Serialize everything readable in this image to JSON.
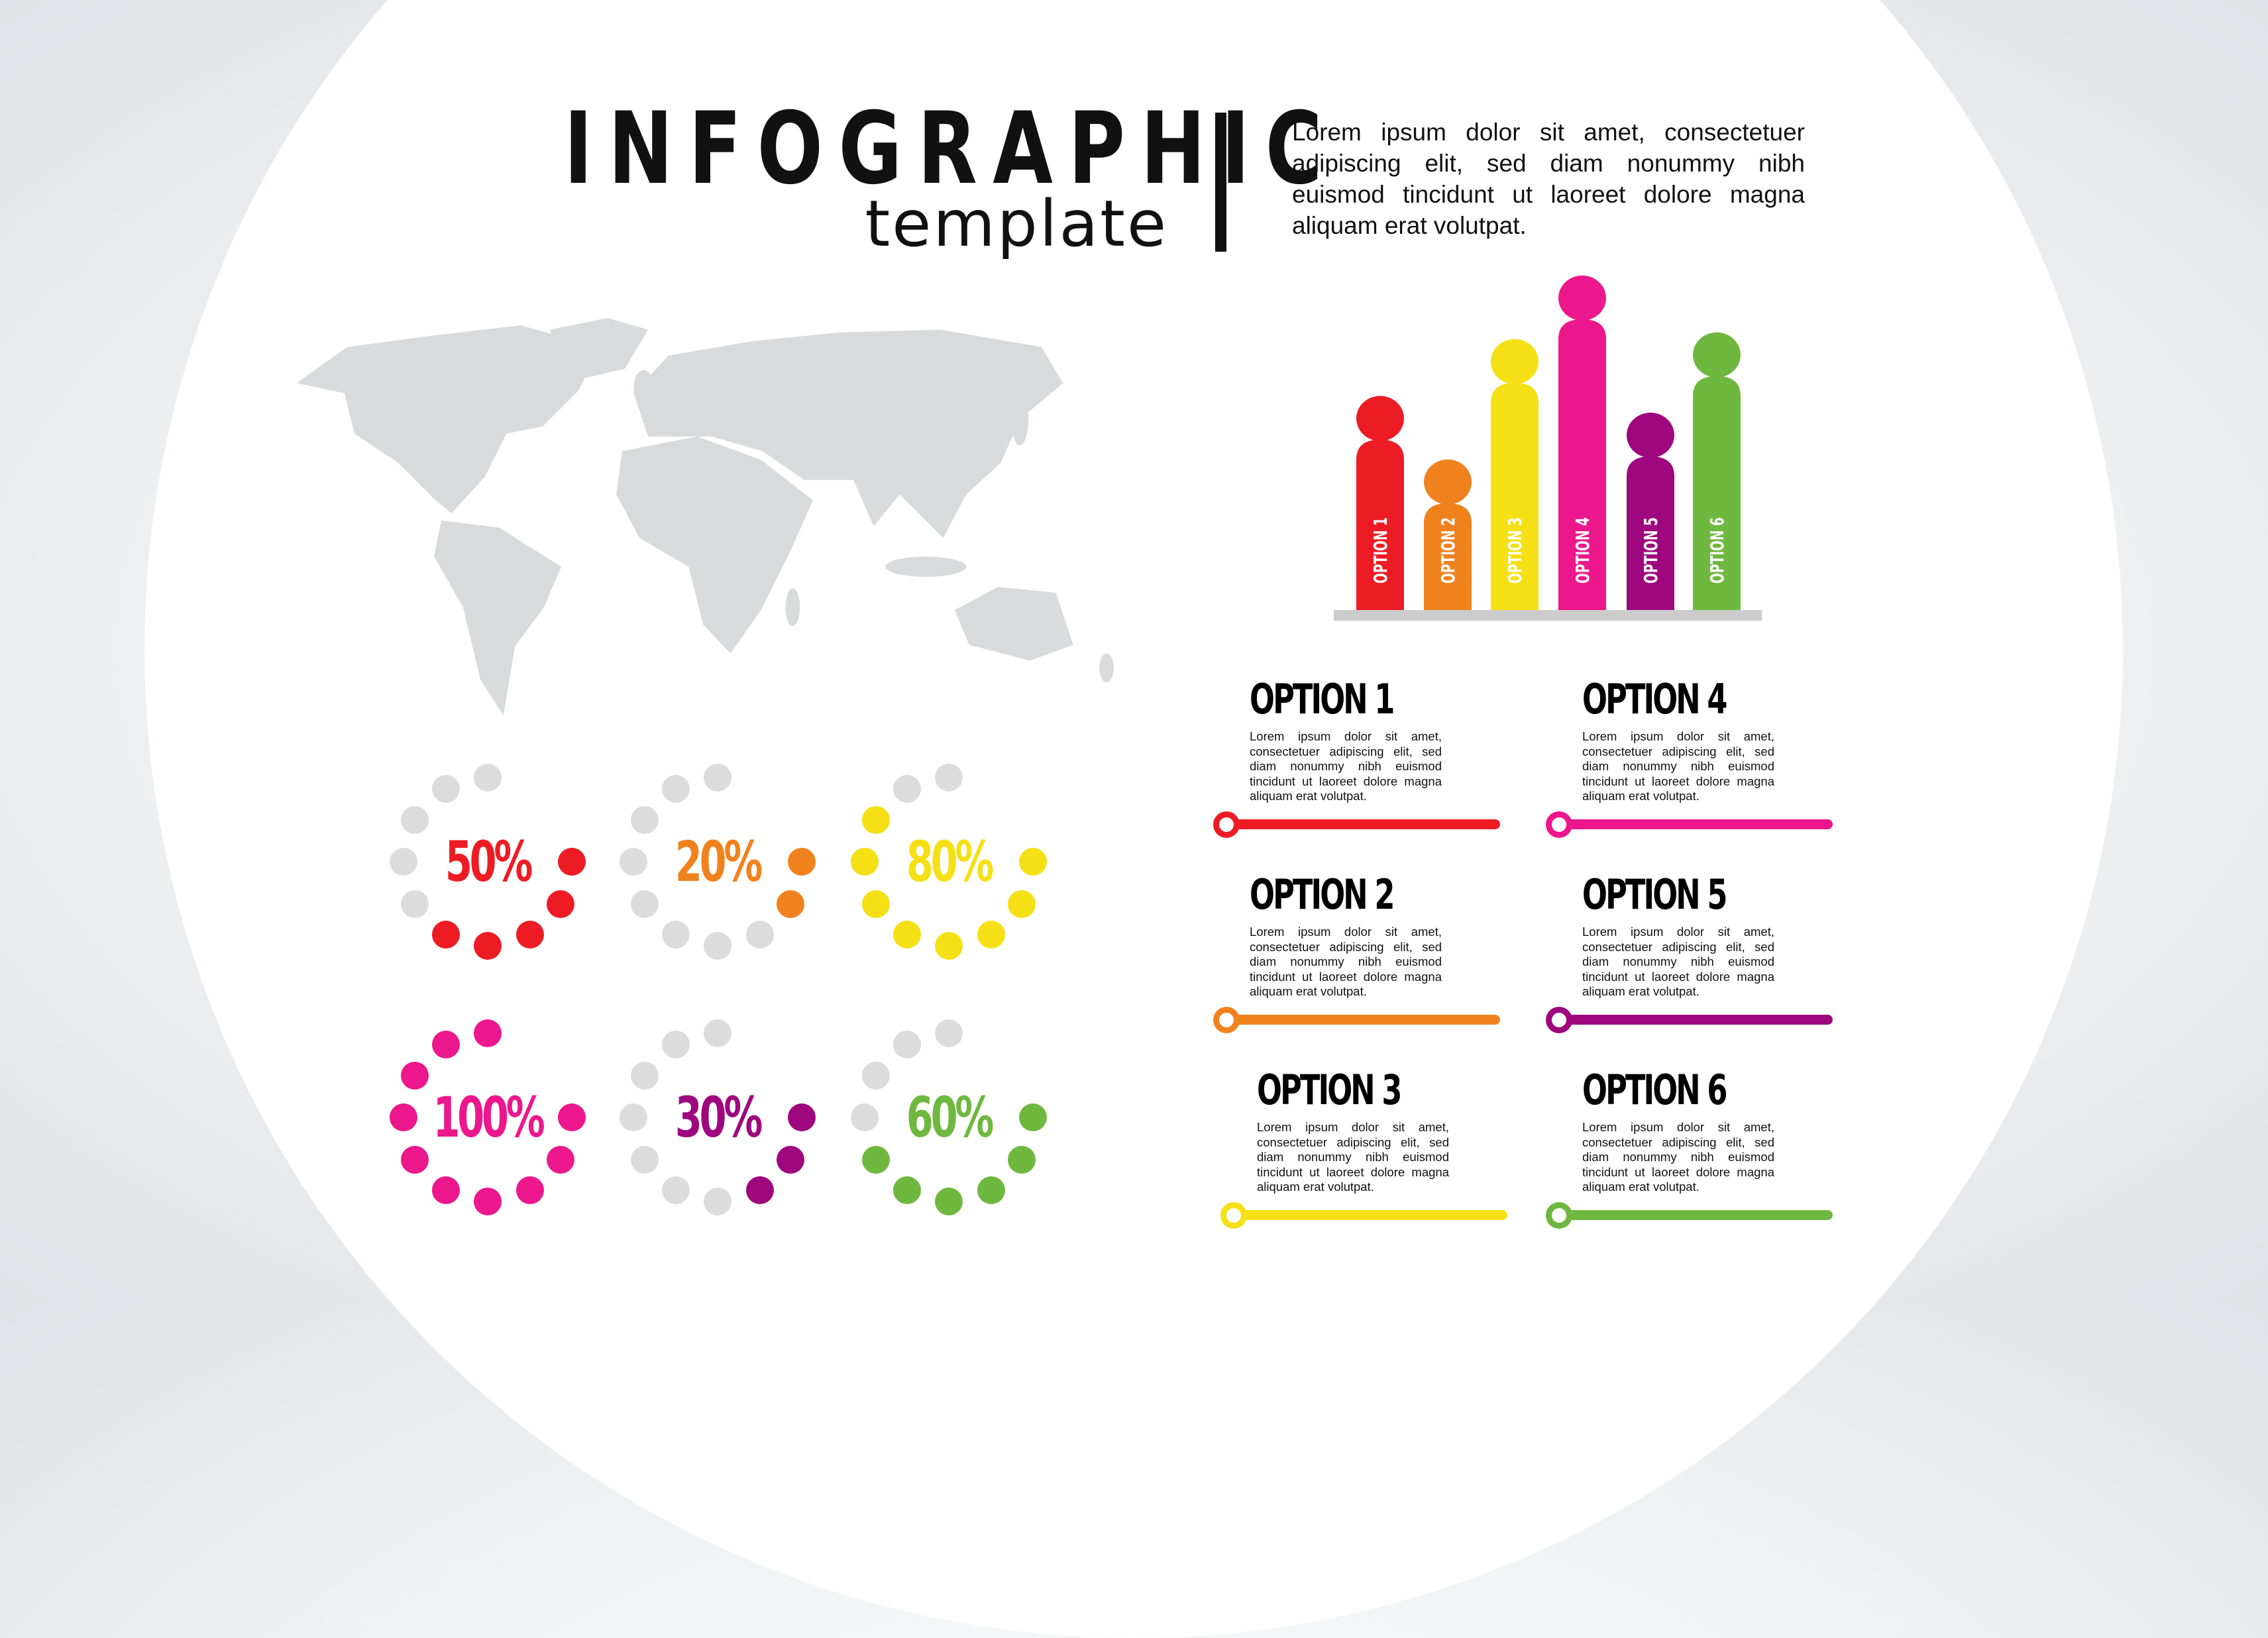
{
  "header": {
    "title": "INFOGRAPHIC",
    "subtitle": "template",
    "intro": "Lorem ipsum dolor sit amet, consectetuer adipiscing elit, sed diam nonummy nibh euismod tincidunt ut laoreet dolore magna aliquam erat volutpat."
  },
  "colors": {
    "red": "#ed1c24",
    "orange": "#f0821e",
    "yellow": "#f5e015",
    "pink": "#ec178c",
    "purple": "#9e077e",
    "green": "#6fb83f",
    "inactive": "#dcdcdc",
    "map": "#d9dadb",
    "baseline": "#cccccc"
  },
  "chart_data": {
    "type": "bar",
    "categories": [
      "OPTION 1",
      "OPTION 2",
      "OPTION 3",
      "OPTION 4",
      "OPTION 5",
      "OPTION 6"
    ],
    "values": [
      64,
      45,
      81,
      100,
      59,
      83
    ],
    "colors": [
      "#ed1c24",
      "#f0821e",
      "#f5e015",
      "#ec178c",
      "#9e077e",
      "#6fb83f"
    ],
    "ylim": [
      0,
      100
    ],
    "grid": false
  },
  "options": [
    {
      "title": "OPTION 1",
      "text": "Lorem ipsum dolor sit amet, consectetuer adipiscing elit, sed diam nonummy nibh euismod tincidunt ut laoreet dolore magna aliquam erat volutpat.",
      "color": "#ed1c24"
    },
    {
      "title": "OPTION 2",
      "text": "Lorem ipsum dolor sit amet, consectetuer adipiscing elit, sed diam nonummy nibh euismod tincidunt ut laoreet dolore magna aliquam erat volutpat.",
      "color": "#f0821e"
    },
    {
      "title": "OPTION 3",
      "text": "Lorem ipsum dolor sit amet, consectetuer adipiscing elit, sed diam nonummy nibh euismod tincidunt ut laoreet dolore magna aliquam erat volutpat.",
      "color": "#f5e015"
    },
    {
      "title": "OPTION 4",
      "text": "Lorem ipsum dolor sit amet, consectetuer adipiscing elit, sed diam nonummy nibh euismod tincidunt ut laoreet dolore magna aliquam erat volutpat.",
      "color": "#ec178c"
    },
    {
      "title": "OPTION 5",
      "text": "Lorem ipsum dolor sit amet, consectetuer adipiscing elit, sed diam nonummy nibh euismod tincidunt ut laoreet dolore magna aliquam erat volutpat.",
      "color": "#9e077e"
    },
    {
      "title": "OPTION 6",
      "text": "Lorem ipsum dolor sit amet, consectetuer adipiscing elit, sed diam nonummy nibh euismod tincidunt ut laoreet dolore magna aliquam erat volutpat.",
      "color": "#6fb83f"
    }
  ],
  "rings": [
    {
      "label": "50%",
      "percent": 50,
      "color": "#ed1c24"
    },
    {
      "label": "20%",
      "percent": 20,
      "color": "#f0821e"
    },
    {
      "label": "80%",
      "percent": 80,
      "color": "#f5e015"
    },
    {
      "label": "100%",
      "percent": 100,
      "color": "#ec178c"
    },
    {
      "label": "30%",
      "percent": 30,
      "color": "#9e077e"
    },
    {
      "label": "60%",
      "percent": 60,
      "color": "#6fb83f"
    }
  ]
}
